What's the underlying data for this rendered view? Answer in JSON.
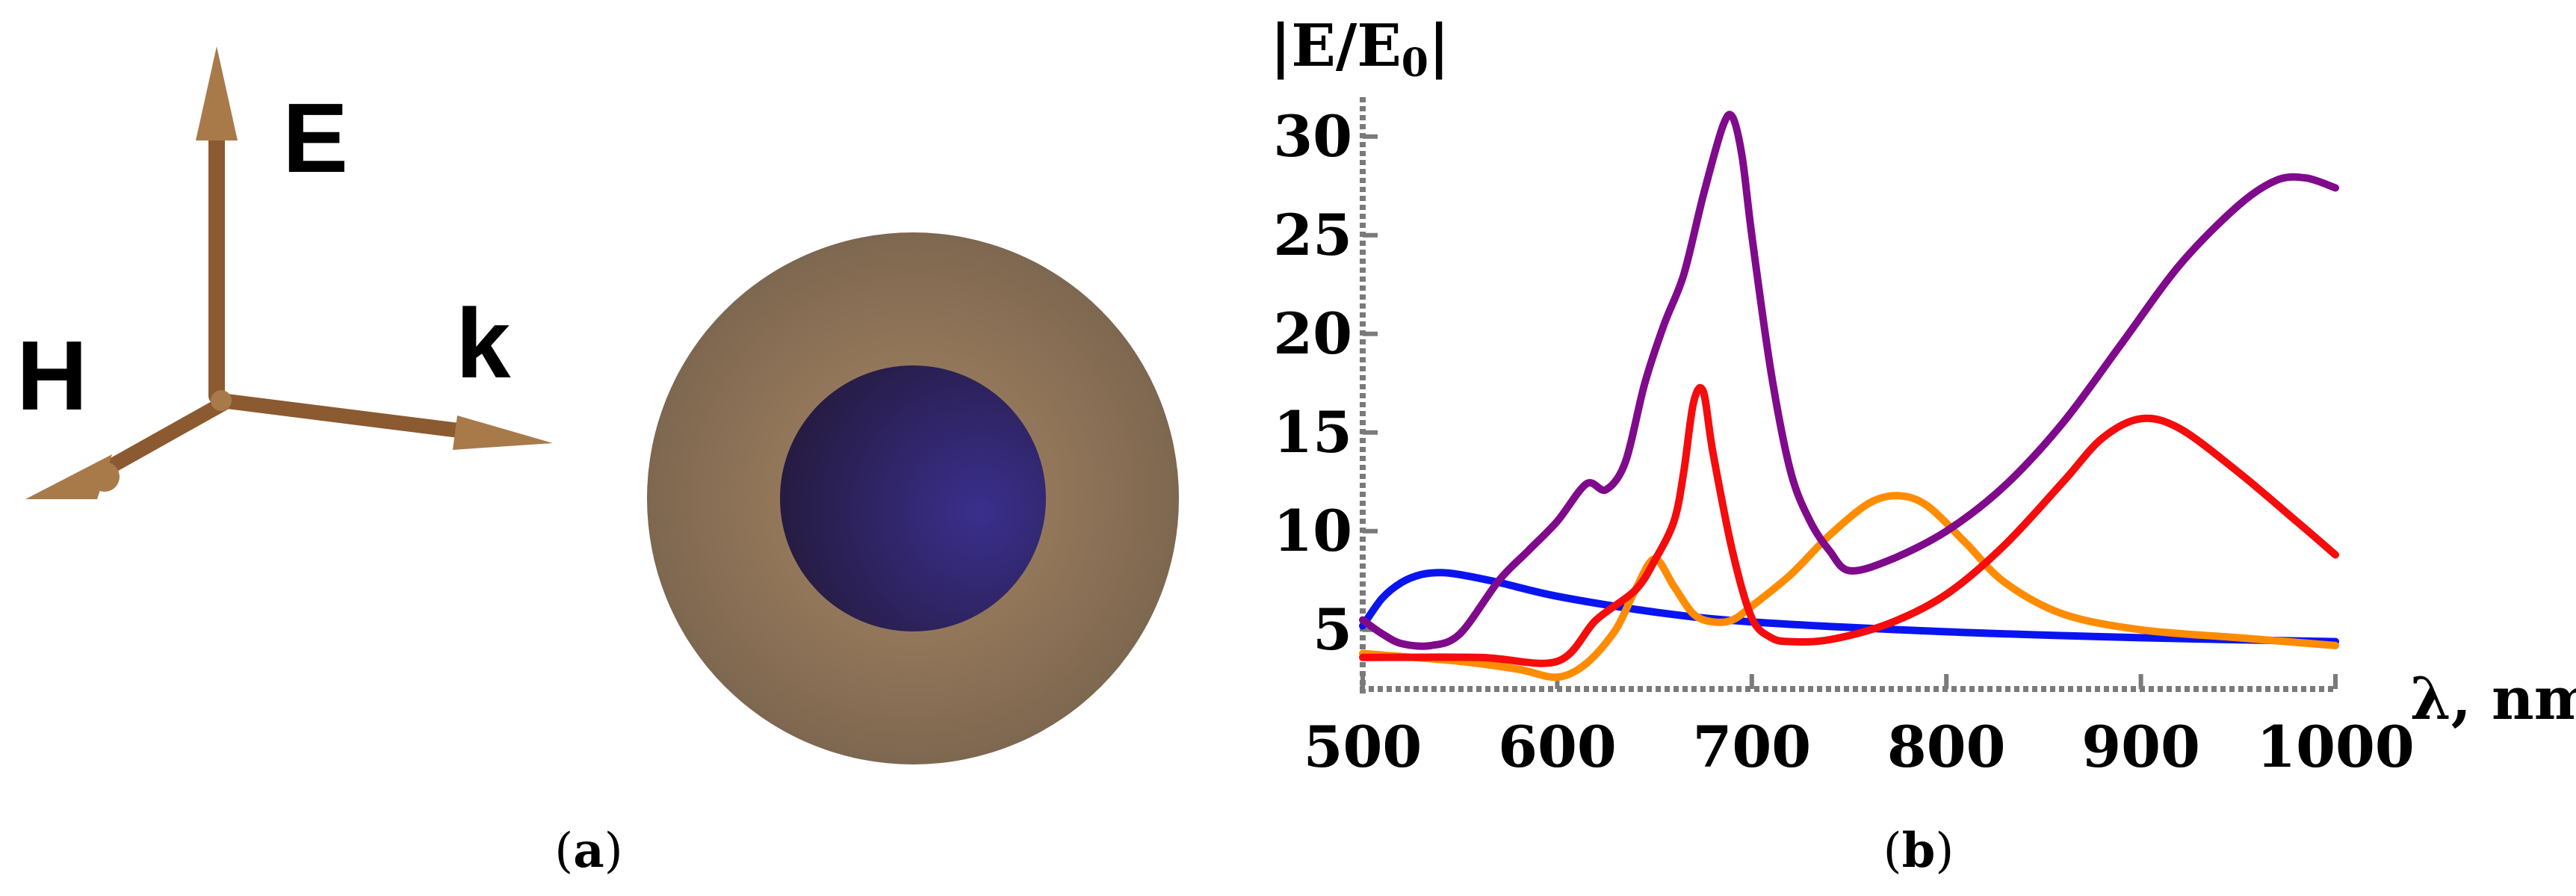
{
  "panel_a": {
    "caption": "(a)",
    "caption_letter": "a",
    "axis_labels": {
      "e_field": "E",
      "h_field": "H",
      "wave_vector": "k"
    },
    "colors": {
      "arrow": "#8c5a30",
      "arrow_light": "#a87a4a",
      "shell": "#a88764",
      "shell_edge": "#7e6750",
      "core": "#3a2f8c",
      "core_dark": "#241a3c"
    }
  },
  "panel_b": {
    "caption": "(b)",
    "caption_letter": "b"
  },
  "chart_data": {
    "type": "line",
    "title": "",
    "ylabel": "|E/E",
    "ylabel_subscript": "0",
    "ylabel_close": "|",
    "xlabel": "λ, nm",
    "xlim": [
      500,
      1000
    ],
    "ylim": [
      2,
      32
    ],
    "xticks": [
      500,
      600,
      700,
      800,
      900,
      1000
    ],
    "xtick_labels": [
      "500",
      "600",
      "700",
      "800",
      "900",
      "1000"
    ],
    "yticks": [
      5,
      10,
      15,
      20,
      25,
      30
    ],
    "ytick_labels": [
      "5",
      "10",
      "15",
      "20",
      "25",
      "30"
    ],
    "grid": false,
    "series": [
      {
        "name": "blue",
        "color": "#0a14f0",
        "x": [
          500,
          510,
          520,
          530,
          540,
          550,
          570,
          600,
          650,
          700,
          800,
          900,
          1000
        ],
        "y": [
          5.2,
          6.6,
          7.4,
          7.8,
          7.9,
          7.8,
          7.4,
          6.7,
          5.9,
          5.4,
          4.9,
          4.6,
          4.4
        ]
      },
      {
        "name": "orange",
        "color": "#ff8c00",
        "x": [
          500,
          550,
          580,
          600,
          615,
          630,
          640,
          650,
          660,
          670,
          680,
          690,
          700,
          720,
          740,
          760,
          775,
          790,
          810,
          830,
          860,
          900,
          950,
          1000
        ],
        "y": [
          3.8,
          3.4,
          3.0,
          2.6,
          3.3,
          5.0,
          7.0,
          8.6,
          7.2,
          5.8,
          5.4,
          5.5,
          6.2,
          7.8,
          9.8,
          11.4,
          11.8,
          11.3,
          9.4,
          7.4,
          5.8,
          5.0,
          4.6,
          4.2
        ]
      },
      {
        "name": "red",
        "color": "#f50c0c",
        "x": [
          500,
          560,
          600,
          620,
          640,
          650,
          660,
          665,
          670,
          675,
          680,
          690,
          700,
          710,
          720,
          740,
          770,
          800,
          830,
          860,
          880,
          900,
          920,
          950,
          980,
          1000
        ],
        "y": [
          3.6,
          3.6,
          3.4,
          5.5,
          7.0,
          8.5,
          10.5,
          13.0,
          16.5,
          17.1,
          14.0,
          9.0,
          5.6,
          4.6,
          4.4,
          4.5,
          5.3,
          6.8,
          9.3,
          12.5,
          14.7,
          15.7,
          15.2,
          13.0,
          10.5,
          8.8
        ]
      },
      {
        "name": "purple",
        "color": "#800a8c",
        "x": [
          500,
          510,
          520,
          535,
          550,
          570,
          585,
          600,
          615,
          625,
          635,
          645,
          655,
          665,
          675,
          685,
          690,
          695,
          700,
          710,
          720,
          730,
          740,
          750,
          770,
          800,
          830,
          860,
          890,
          920,
          950,
          970,
          985,
          1000
        ],
        "y": [
          5.5,
          4.8,
          4.3,
          4.2,
          4.8,
          7.5,
          9.0,
          10.5,
          12.4,
          12.1,
          13.5,
          17.5,
          20.5,
          23.0,
          27.0,
          30.5,
          31.0,
          29.0,
          25.0,
          18.0,
          13.0,
          10.5,
          9.0,
          8.0,
          8.5,
          10.0,
          12.3,
          15.5,
          19.5,
          23.5,
          26.5,
          27.8,
          27.9,
          27.4
        ]
      }
    ]
  }
}
